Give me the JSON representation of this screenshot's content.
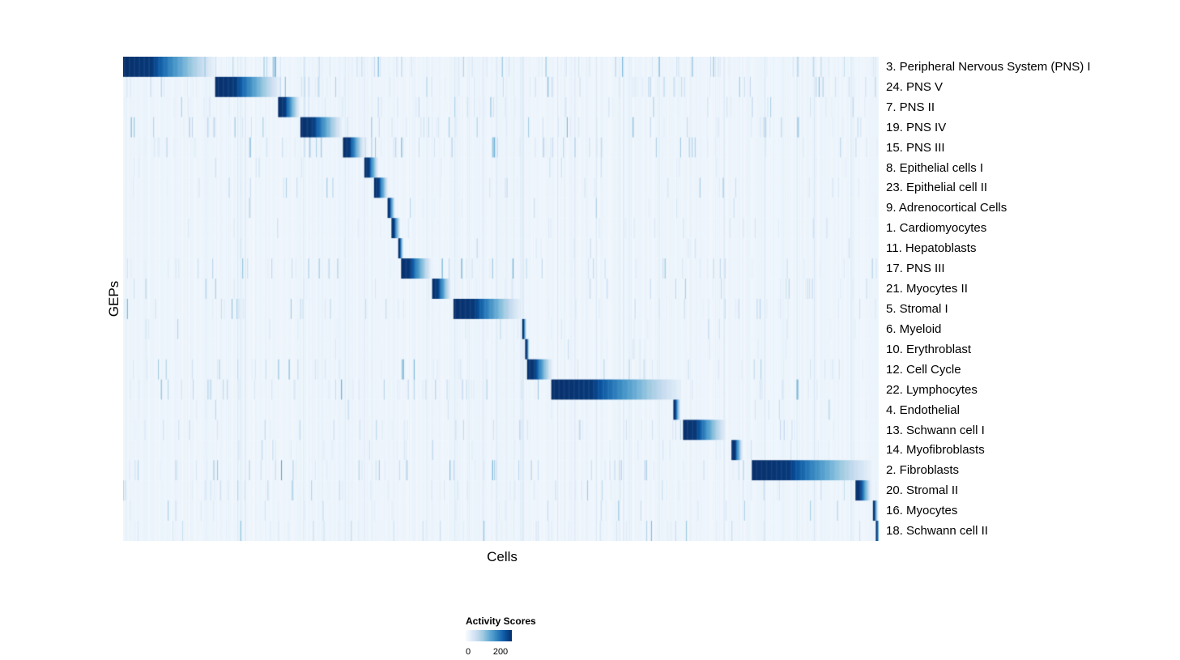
{
  "chart_data": {
    "type": "heatmap",
    "xlabel": "Cells",
    "ylabel": "GEPs",
    "grid": false,
    "legend": {
      "title": "Activity Scores",
      "min_label": "0",
      "max_label": "200",
      "min": 0,
      "max": 200,
      "position": "bottom"
    },
    "colormap": [
      "#f7fbff",
      "#deebf7",
      "#c6dbef",
      "#9ecae1",
      "#6baed6",
      "#4292c6",
      "#2171b5",
      "#08519c",
      "#08306b"
    ],
    "rows": [
      {
        "label": "3. Peripheral Nervous System (PNS) I",
        "start": 0.0,
        "width": 0.12,
        "noise": 0.55
      },
      {
        "label": "24. PNS V",
        "start": 0.121,
        "width": 0.086,
        "noise": 0.5
      },
      {
        "label": "7. PNS II",
        "start": 0.205,
        "width": 0.028,
        "noise": 0.35
      },
      {
        "label": "19. PNS IV",
        "start": 0.234,
        "width": 0.055,
        "noise": 0.6
      },
      {
        "label": "15. PNS III",
        "start": 0.291,
        "width": 0.027,
        "noise": 0.5
      },
      {
        "label": "8. Epithelial cells I",
        "start": 0.319,
        "width": 0.018,
        "noise": 0.18
      },
      {
        "label": "23. Epithelial cell II",
        "start": 0.332,
        "width": 0.018,
        "noise": 0.22
      },
      {
        "label": "9. Adrenocortical Cells",
        "start": 0.349,
        "width": 0.01,
        "noise": 0.12
      },
      {
        "label": "1. Cardiomyocytes",
        "start": 0.354,
        "width": 0.012,
        "noise": 0.15
      },
      {
        "label": "11. Hepatoblasts",
        "start": 0.364,
        "width": 0.006,
        "noise": 0.12
      },
      {
        "label": "17. PNS III",
        "start": 0.367,
        "width": 0.04,
        "noise": 0.5
      },
      {
        "label": "21. Myocytes II",
        "start": 0.408,
        "width": 0.025,
        "noise": 0.3
      },
      {
        "label": "5. Stromal I",
        "start": 0.437,
        "width": 0.088,
        "noise": 0.4
      },
      {
        "label": "6. Myeloid",
        "start": 0.528,
        "width": 0.005,
        "noise": 0.15
      },
      {
        "label": "10. Erythroblast",
        "start": 0.532,
        "width": 0.005,
        "noise": 0.15
      },
      {
        "label": "12. Cell Cycle",
        "start": 0.534,
        "width": 0.033,
        "noise": 0.5
      },
      {
        "label": "22. Lymphocytes",
        "start": 0.566,
        "width": 0.172,
        "noise": 0.55
      },
      {
        "label": "4. Endothelial",
        "start": 0.727,
        "width": 0.01,
        "noise": 0.15
      },
      {
        "label": "13. Schwann cell I",
        "start": 0.74,
        "width": 0.057,
        "noise": 0.4
      },
      {
        "label": "14. Myofibroblasts",
        "start": 0.805,
        "width": 0.014,
        "noise": 0.25
      },
      {
        "label": "2. Fibroblasts",
        "start": 0.831,
        "width": 0.158,
        "noise": 0.5
      },
      {
        "label": "20. Stromal II",
        "start": 0.969,
        "width": 0.02,
        "noise": 0.35
      },
      {
        "label": "16. Myocytes",
        "start": 0.992,
        "width": 0.006,
        "noise": 0.3
      },
      {
        "label": "18. Schwann cell II",
        "start": 0.996,
        "width": 0.004,
        "noise": 0.4
      }
    ]
  }
}
